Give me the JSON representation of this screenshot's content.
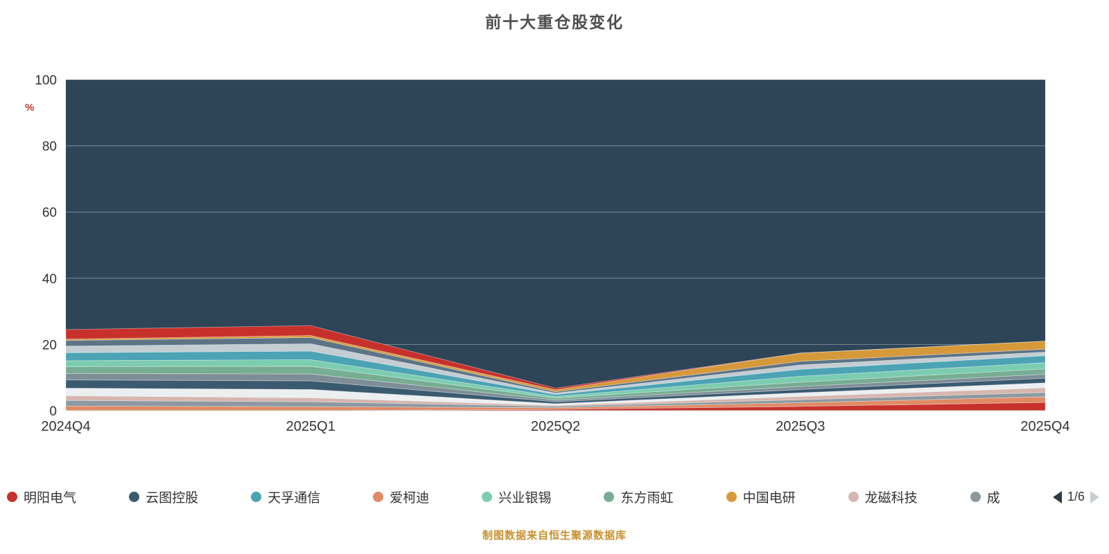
{
  "title": "前十大重仓股变化",
  "y_axis": {
    "unit": "%",
    "ticks": [
      0,
      20,
      40,
      60,
      80,
      100
    ]
  },
  "x_axis": {
    "categories": [
      "2024Q4",
      "2025Q1",
      "2025Q2",
      "2025Q3",
      "2025Q4"
    ]
  },
  "legend": {
    "items": [
      {
        "label": "明阳电气",
        "color": "#c8312b"
      },
      {
        "label": "云图控股",
        "color": "#3a5a70"
      },
      {
        "label": "天孚通信",
        "color": "#4ba3b4"
      },
      {
        "label": "爱柯迪",
        "color": "#e08a64"
      },
      {
        "label": "兴业银锡",
        "color": "#7ccdb0"
      },
      {
        "label": "东方雨虹",
        "color": "#76ad93"
      },
      {
        "label": "中国电研",
        "color": "#d6993a"
      },
      {
        "label": "龙磁科技",
        "color": "#d6b6ae"
      },
      {
        "label": "成",
        "color": "#8d99a1"
      }
    ],
    "page": "1/6"
  },
  "footer": {
    "caption": "制图数据来自恒生聚源数据库"
  },
  "colors": {
    "plot_bg": "#2e4457",
    "grid": "#dce4e9",
    "axis_label": "#333333",
    "title": "#4d4d4d",
    "unit": "#c0392b",
    "caption": "#c9902e",
    "pager_active": "#2f3b44",
    "pager_inactive": "#c6ced3"
  },
  "chart_data": {
    "type": "area",
    "stacked": true,
    "title": "前十大重仓股变化",
    "xlabel": "",
    "ylabel": "%",
    "ylim": [
      0,
      100
    ],
    "grid": true,
    "legend_position": "bottom",
    "x": [
      "2024Q4",
      "2025Q1",
      "2025Q2",
      "2025Q3",
      "2025Q4"
    ],
    "series": [
      {
        "name": "明阳电气",
        "color": "#c8312b",
        "values": [
          0.0,
          0.0,
          0.4,
          1.3,
          2.5
        ]
      },
      {
        "name": "爱柯迪",
        "color": "#e08a64",
        "values": [
          1.4,
          1.2,
          0.5,
          1.1,
          1.7
        ]
      },
      {
        "name": "成",
        "color": "#8d99a1",
        "values": [
          1.7,
          1.5,
          0.4,
          0.9,
          1.3
        ]
      },
      {
        "name": "龙磁科技",
        "color": "#d6b6ae",
        "values": [
          1.4,
          1.2,
          0.3,
          1.0,
          1.4
        ]
      },
      {
        "name": "unlabeled-1",
        "color": "#eceff0",
        "values": [
          2.3,
          2.5,
          0.5,
          1.1,
          1.5
        ]
      },
      {
        "name": "云图控股",
        "color": "#3a5a70",
        "values": [
          2.5,
          2.6,
          0.6,
          1.0,
          1.4
        ]
      },
      {
        "name": "unlabeled-2",
        "color": "#7e8d96",
        "values": [
          1.9,
          2.1,
          0.5,
          0.9,
          1.2
        ]
      },
      {
        "name": "东方雨虹",
        "color": "#76ad93",
        "values": [
          2.1,
          2.3,
          0.6,
          1.3,
          1.6
        ]
      },
      {
        "name": "兴业银锡",
        "color": "#7ccdb0",
        "values": [
          1.8,
          2.0,
          0.5,
          1.8,
          1.9
        ]
      },
      {
        "name": "天孚通信",
        "color": "#4ba3b4",
        "values": [
          2.4,
          2.6,
          0.6,
          2.1,
          2.1
        ]
      },
      {
        "name": "unlabeled-3",
        "color": "#c3cdd2",
        "values": [
          2.0,
          2.2,
          0.4,
          1.3,
          1.1
        ]
      },
      {
        "name": "unlabeled-4",
        "color": "#5d7486",
        "values": [
          1.7,
          1.9,
          0.4,
          1.1,
          0.9
        ]
      },
      {
        "name": "中国电研",
        "color": "#d6993a",
        "values": [
          0.4,
          0.6,
          0.6,
          2.5,
          2.4
        ]
      },
      {
        "name": "unlabeled-5",
        "color": "#c8312b",
        "values": [
          2.9,
          3.0,
          0.5,
          0.0,
          0.0
        ]
      }
    ]
  }
}
